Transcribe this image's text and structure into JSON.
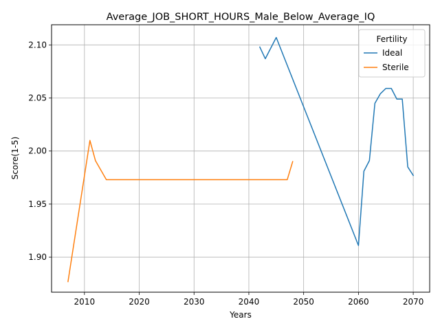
{
  "chart_data": {
    "type": "line",
    "title": "Average_JOB_SHORT_HOURS_Male_Below_Average_IQ",
    "xlabel": "Years",
    "ylabel": "Score(1-5)",
    "xlim": [
      2004,
      2073
    ],
    "ylim": [
      1.867,
      2.119
    ],
    "xticks": [
      2010,
      2020,
      2030,
      2040,
      2050,
      2060,
      2070
    ],
    "yticks": [
      1.9,
      1.95,
      2.0,
      2.05,
      2.1
    ],
    "ytick_labels": [
      "1.90",
      "1.95",
      "2.00",
      "2.05",
      "2.10"
    ],
    "grid": true,
    "legend": {
      "title": "Fertility",
      "position": "upper-right"
    },
    "series": [
      {
        "name": "Ideal",
        "color": "#1f77b4",
        "x": [
          2042,
          2043,
          2045,
          2060,
          2061,
          2062,
          2063,
          2064,
          2065,
          2066,
          2067,
          2068,
          2069,
          2070
        ],
        "y": [
          2.098,
          2.087,
          2.107,
          1.911,
          1.981,
          1.991,
          2.045,
          2.054,
          2.059,
          2.059,
          2.049,
          2.049,
          1.985,
          1.977
        ]
      },
      {
        "name": "Sterile",
        "color": "#ff7f0e",
        "x": [
          2007,
          2011,
          2012,
          2014,
          2047,
          2048
        ],
        "y": [
          1.877,
          2.01,
          1.991,
          1.973,
          1.973,
          1.99
        ]
      }
    ]
  }
}
